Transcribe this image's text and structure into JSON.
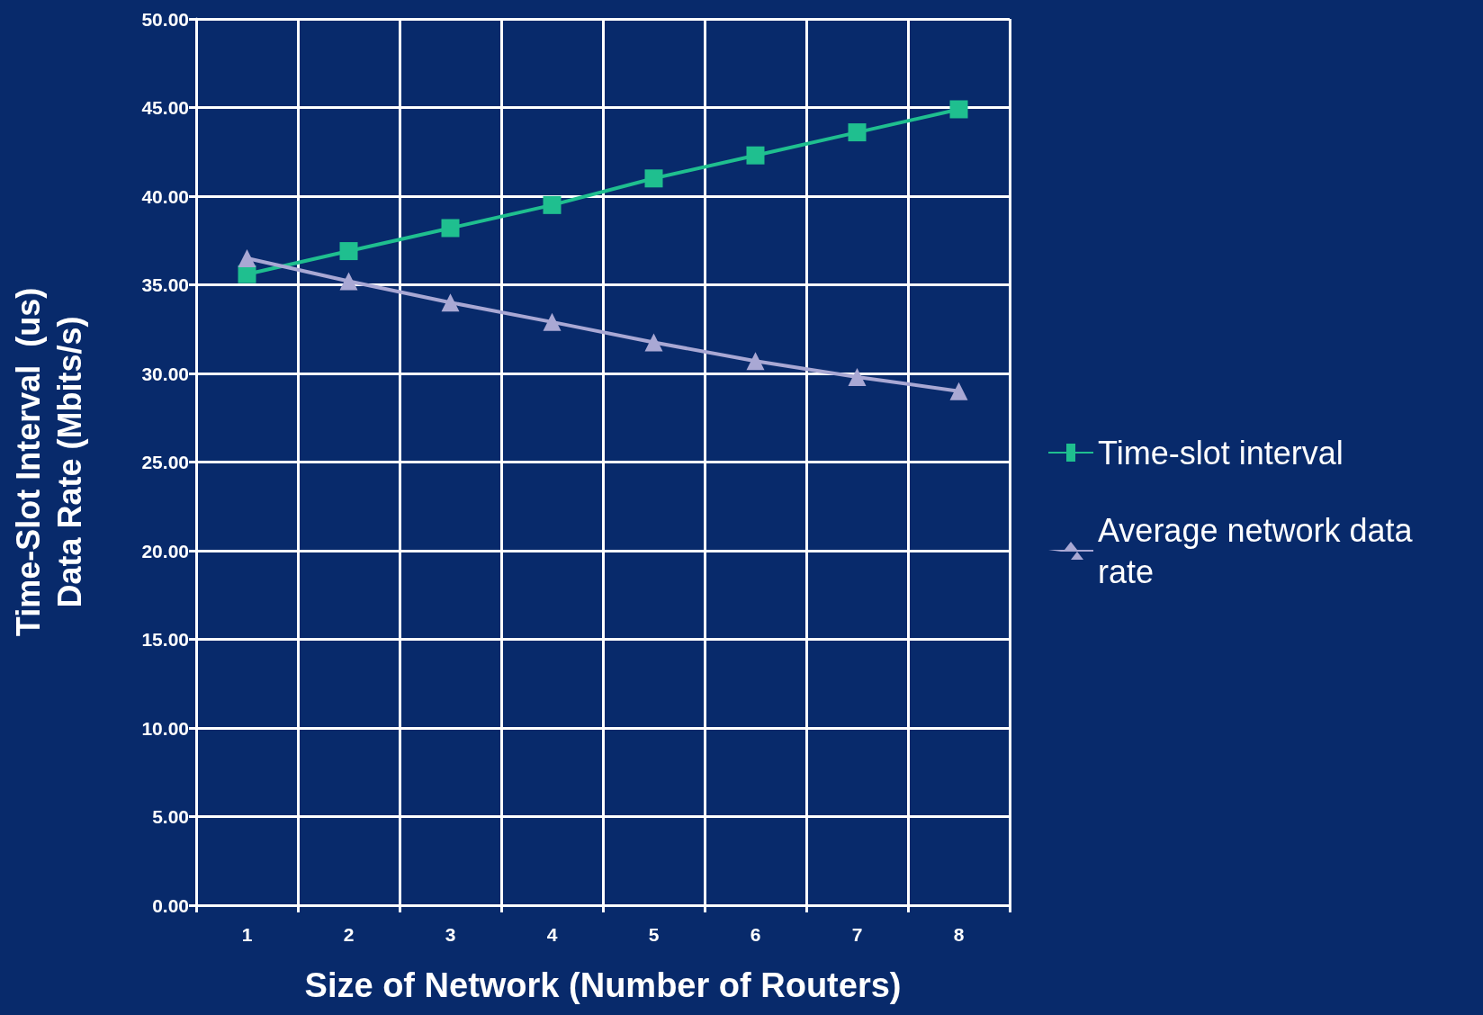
{
  "chart_data": {
    "type": "line",
    "xlabel": "Size of Network (Number of Routers)",
    "ylabel": "Time-Slot Interval  (us)\nData Rate (Mbits/s)",
    "categories": [
      "1",
      "2",
      "3",
      "4",
      "5",
      "6",
      "7",
      "8"
    ],
    "series": [
      {
        "name": "Time-slot interval",
        "color": "#1fbf8f",
        "marker": "square",
        "values": [
          35.6,
          36.9,
          38.2,
          39.5,
          41.0,
          42.3,
          43.6,
          44.9
        ]
      },
      {
        "name": "Average network data rate",
        "color": "#a9a8d4",
        "marker": "triangle",
        "values": [
          36.5,
          35.2,
          34.0,
          32.9,
          31.75,
          30.7,
          29.8,
          29.0
        ]
      }
    ],
    "ylim": [
      0,
      50
    ],
    "yticks": [
      {
        "value": 0,
        "label": "0.00"
      },
      {
        "value": 5,
        "label": "5.00"
      },
      {
        "value": 10,
        "label": "10.00"
      },
      {
        "value": 15,
        "label": "15.00"
      },
      {
        "value": 20,
        "label": "20.00"
      },
      {
        "value": 25,
        "label": "25.00"
      },
      {
        "value": 30,
        "label": "30.00"
      },
      {
        "value": 35,
        "label": "35.00"
      },
      {
        "value": 40,
        "label": "40.00"
      },
      {
        "value": 45,
        "label": "45.00"
      },
      {
        "value": 50,
        "label": "50.00"
      }
    ],
    "grid": true,
    "legend": "right",
    "line_style": "solid"
  }
}
